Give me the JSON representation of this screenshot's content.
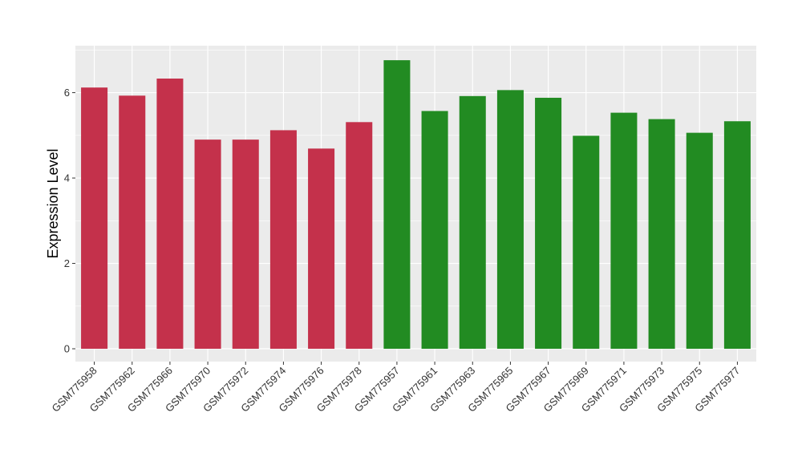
{
  "chart_data": {
    "type": "bar",
    "title": "",
    "xlabel": "",
    "ylabel": "Expression Level",
    "ylim": [
      -0.3,
      7.1
    ],
    "yticks": [
      0,
      2,
      4,
      6
    ],
    "grid": true,
    "legend": "none",
    "colors": {
      "panel": "#EBEBEB",
      "grid": "#FFFFFF",
      "group_1": "#C4314B",
      "group_2": "#228B22"
    },
    "categories": [
      "GSM775958",
      "GSM775962",
      "GSM775966",
      "GSM775970",
      "GSM775972",
      "GSM775974",
      "GSM775976",
      "GSM775978",
      "GSM775957",
      "GSM775961",
      "GSM775963",
      "GSM775965",
      "GSM775967",
      "GSM775969",
      "GSM775971",
      "GSM775973",
      "GSM775975",
      "GSM775977"
    ],
    "values": [
      6.12,
      5.93,
      6.33,
      4.9,
      4.9,
      5.12,
      4.69,
      5.31,
      6.76,
      5.57,
      5.92,
      6.06,
      5.88,
      4.99,
      5.53,
      5.38,
      5.06,
      5.33
    ],
    "bar_colors": [
      "#C4314B",
      "#C4314B",
      "#C4314B",
      "#C4314B",
      "#C4314B",
      "#C4314B",
      "#C4314B",
      "#C4314B",
      "#228B22",
      "#228B22",
      "#228B22",
      "#228B22",
      "#228B22",
      "#228B22",
      "#228B22",
      "#228B22",
      "#228B22",
      "#228B22"
    ]
  }
}
